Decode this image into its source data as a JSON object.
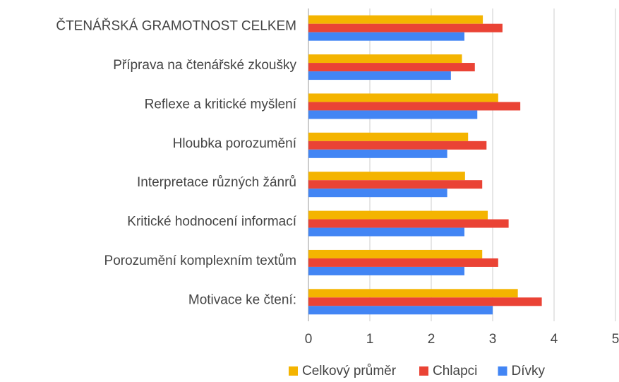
{
  "chart_data": {
    "type": "hbar",
    "categories": [
      "ČTENÁŘSKÁ GRAMOTNOST CELKEM",
      "Příprava na čtenářské zkoušky",
      "Reflexe a kritické myšlení",
      "Hloubka porozumění",
      "Interpretace různých žánrů",
      "Kritické hodnocení informací",
      "Porozumění komplexním textům",
      "Motivace ke čtení:"
    ],
    "series": [
      {
        "name": "Celkový průměr",
        "color": "#f4b400",
        "values": [
          2.84,
          2.5,
          3.09,
          2.6,
          2.55,
          2.92,
          2.83,
          3.41
        ]
      },
      {
        "name": "Chlapci",
        "color": "#ea4335",
        "values": [
          3.16,
          2.71,
          3.45,
          2.9,
          2.83,
          3.26,
          3.09,
          3.8
        ]
      },
      {
        "name": "Dívky",
        "color": "#4285f4",
        "values": [
          2.54,
          2.32,
          2.75,
          2.26,
          2.26,
          2.54,
          2.54,
          3.0
        ]
      }
    ],
    "xlim": [
      0,
      5
    ],
    "xticks": [
      0,
      1,
      2,
      3,
      4,
      5
    ],
    "grid": true,
    "legend": "bottom"
  }
}
